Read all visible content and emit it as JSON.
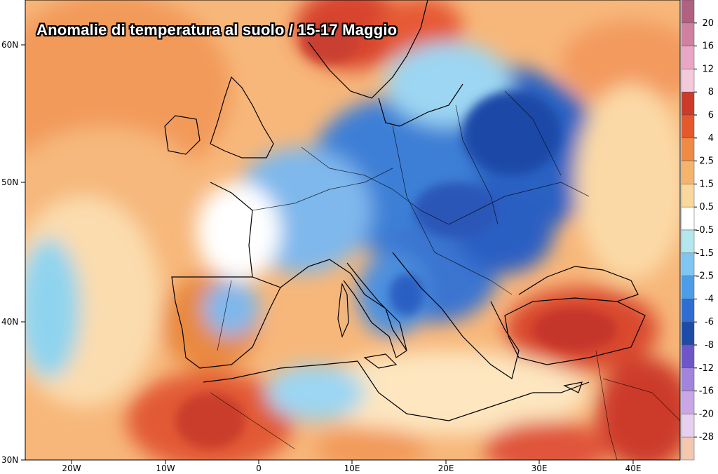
{
  "title": "Anomalie di temperatura al suolo /  15-17 Maggio",
  "axes": {
    "lat_labels": [
      "60N",
      "50N",
      "40N",
      "30N"
    ],
    "lon_labels": [
      "20W",
      "10W",
      "0",
      "10E",
      "20E",
      "30E",
      "40E"
    ]
  },
  "colorbar": {
    "labels": [
      "20",
      "16",
      "12",
      "8",
      "6",
      "4",
      "2.5",
      "1.5",
      "0.5",
      "-0.5",
      "-1.5",
      "-2.5",
      "-4",
      "-6",
      "-8",
      "-12",
      "-16",
      "-20",
      "-28"
    ],
    "colors": [
      "#b06080",
      "#d080a0",
      "#e9a6c6",
      "#f4c9dc",
      "#cc3a2a",
      "#e4582c",
      "#f08a44",
      "#f5b46c",
      "#fad89c",
      "#ffffff",
      "#b5e8ee",
      "#7fc6f2",
      "#4a9de6",
      "#2f6dd2",
      "#1f4aa8",
      "#6e56c9",
      "#a384dc",
      "#c9a6e6",
      "#e7cfef",
      "#f4c8b0"
    ]
  },
  "legend_colors": {
    "warm_strong": "#d8452d",
    "warm": "#f0884a",
    "warm_light": "#f7be7c",
    "neutral": "#fbe6c2",
    "cold_light": "#a8dcf4",
    "cold": "#4a88dc",
    "cold_strong": "#1f4fa8"
  }
}
